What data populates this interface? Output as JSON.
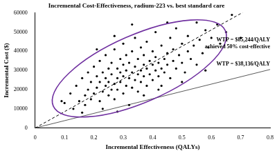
{
  "chart_data": {
    "type": "scatter",
    "title": "Incremental Cost-Effectiveness, radium-223 vs. best standard care",
    "x_label": "Incremental Effectiveness (QALYs)",
    "y_label": "Incremental Cost ($)",
    "color": "#000000",
    "marker": "circle",
    "grid": false,
    "xlim": [
      0,
      0.8
    ],
    "xticks": [
      0,
      0.1,
      0.2,
      0.3,
      0.4,
      0.5,
      0.6,
      0.7,
      0.8
    ],
    "ylim": [
      0,
      60000
    ],
    "yticks": [
      0,
      10000,
      20000,
      30000,
      40000,
      50000,
      60000
    ],
    "x": [
      0.1,
      0.12,
      0.13,
      0.14,
      0.15,
      0.16,
      0.17,
      0.17,
      0.18,
      0.18,
      0.19,
      0.19,
      0.2,
      0.2,
      0.21,
      0.21,
      0.22,
      0.22,
      0.22,
      0.23,
      0.23,
      0.24,
      0.24,
      0.24,
      0.25,
      0.25,
      0.25,
      0.26,
      0.26,
      0.26,
      0.27,
      0.27,
      0.27,
      0.28,
      0.28,
      0.28,
      0.29,
      0.29,
      0.29,
      0.3,
      0.3,
      0.3,
      0.3,
      0.31,
      0.31,
      0.31,
      0.32,
      0.32,
      0.32,
      0.33,
      0.33,
      0.33,
      0.34,
      0.34,
      0.34,
      0.35,
      0.35,
      0.35,
      0.36,
      0.36,
      0.36,
      0.37,
      0.37,
      0.37,
      0.38,
      0.38,
      0.38,
      0.39,
      0.39,
      0.4,
      0.4,
      0.4,
      0.41,
      0.41,
      0.41,
      0.42,
      0.42,
      0.43,
      0.43,
      0.43,
      0.44,
      0.44,
      0.45,
      0.45,
      0.46,
      0.46,
      0.47,
      0.47,
      0.48,
      0.48,
      0.49,
      0.5,
      0.5,
      0.51,
      0.52,
      0.52,
      0.53,
      0.54,
      0.55,
      0.55,
      0.56,
      0.57,
      0.58,
      0.59,
      0.6,
      0.62,
      0.63,
      0.65,
      0.67,
      0.7,
      0.09,
      0.16,
      0.23,
      0.28,
      0.21,
      0.27,
      0.33,
      0.45,
      0.37,
      0.42,
      0.5,
      0.58
    ],
    "values": [
      13000,
      18000,
      10000,
      22000,
      14000,
      26000,
      17000,
      12000,
      20000,
      29000,
      15000,
      24000,
      18000,
      32000,
      21000,
      27000,
      14000,
      24000,
      35000,
      19000,
      29000,
      22000,
      26000,
      38000,
      17000,
      31000,
      24000,
      20000,
      28000,
      34000,
      23000,
      15000,
      41000,
      26000,
      31000,
      20000,
      29000,
      36000,
      24000,
      18000,
      27000,
      33000,
      44000,
      22000,
      30000,
      38000,
      26000,
      12000,
      34000,
      29000,
      21000,
      40000,
      25000,
      32000,
      47000,
      28000,
      36000,
      19000,
      30000,
      24000,
      42000,
      33000,
      27000,
      38000,
      22000,
      31000,
      45000,
      35000,
      28000,
      25000,
      33000,
      40000,
      30000,
      50000,
      37000,
      27000,
      34000,
      31000,
      43000,
      22000,
      36000,
      29000,
      39000,
      33000,
      47000,
      26000,
      35000,
      41000,
      31000,
      52000,
      38000,
      34000,
      44000,
      29000,
      40000,
      48000,
      36000,
      43000,
      55000,
      33000,
      46000,
      39000,
      51000,
      42000,
      47000,
      54000,
      44000,
      50000,
      59000,
      47000,
      14000,
      8000,
      10000,
      8500,
      41000,
      48000,
      54000,
      55000,
      17000,
      20000,
      24000,
      30000
    ],
    "lines": [
      {
        "slope": 85244,
        "line_style": "dashed",
        "color": "#000000",
        "text": [
          "WTP = $85,244/QALY",
          "achieved 50% cost-effective"
        ]
      },
      {
        "slope": 38136,
        "line_style": "solid",
        "color": "#595959",
        "text": [
          "WTP = $38,136/QALY"
        ]
      }
    ]
  }
}
